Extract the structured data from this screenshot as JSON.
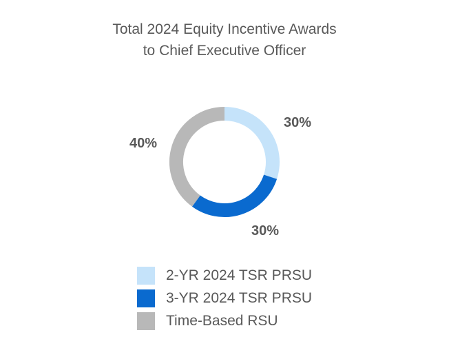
{
  "chart_data": {
    "type": "pie",
    "variant": "donut",
    "title_line1": "Total 2024 Equity Incentive Awards",
    "title_line2": "to Chief Executive Officer",
    "slices": [
      {
        "label": "2-YR 2024 TSR PRSU",
        "value": 30,
        "value_label": "30%",
        "color": "#C5E3FA"
      },
      {
        "label": "3-YR 2024 TSR PRSU",
        "value": 30,
        "value_label": "30%",
        "color": "#0A6ACF"
      },
      {
        "label": "Time-Based RSU",
        "value": 40,
        "value_label": "40%",
        "color": "#B8B8B8"
      }
    ],
    "legend_position": "bottom"
  }
}
